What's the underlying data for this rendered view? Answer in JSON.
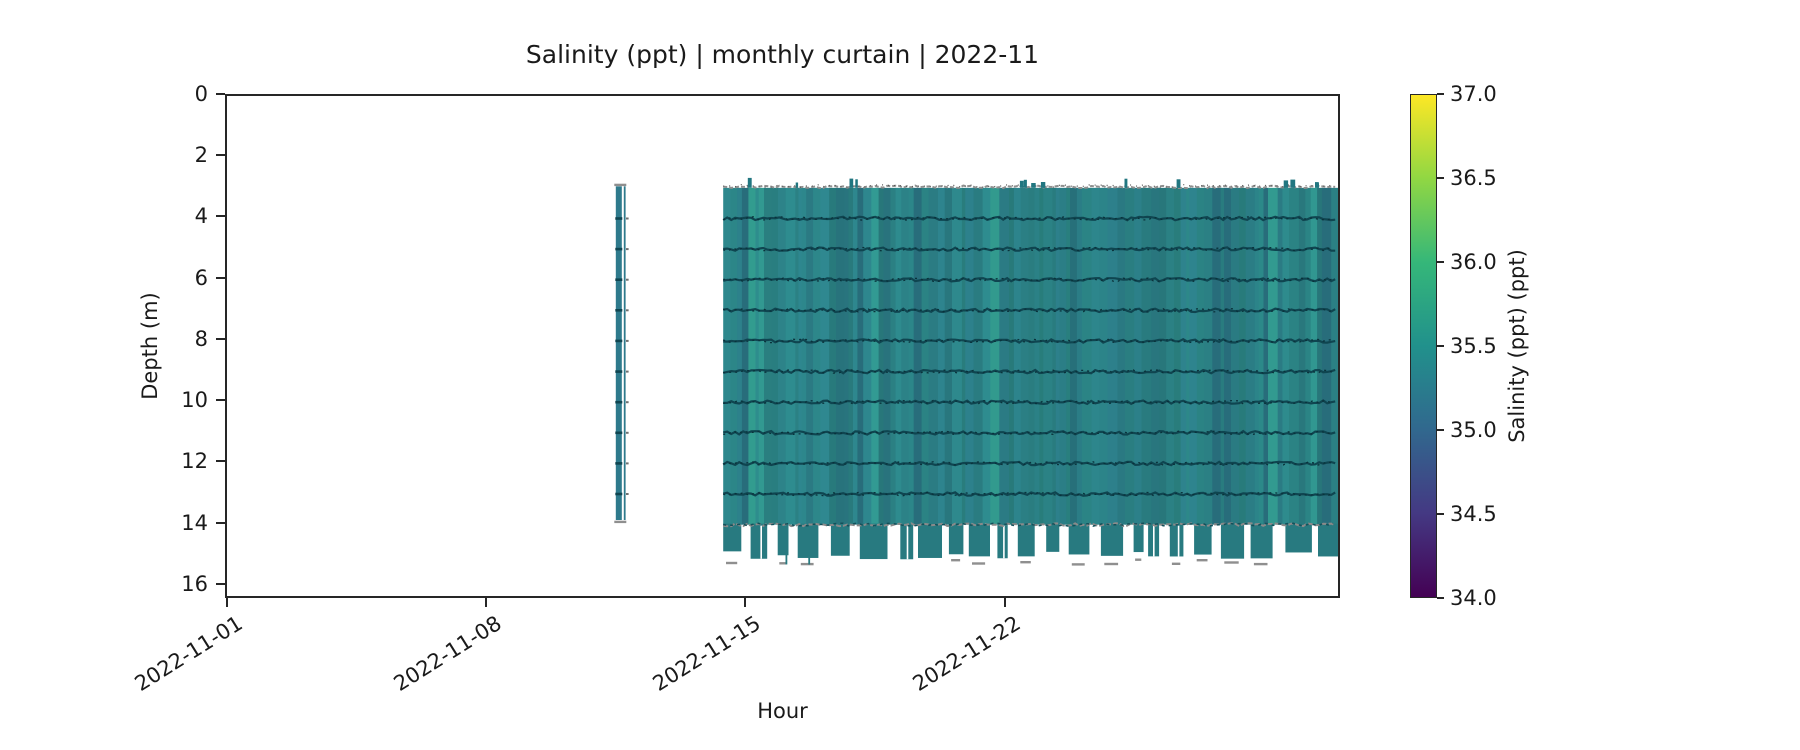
{
  "figure": {
    "background": "#ffffff"
  },
  "chart_data": {
    "type": "heatmap",
    "title": "Salinity (ppt) | monthly curtain | 2022-11",
    "xlabel": "Hour",
    "ylabel": "Depth (m)",
    "x_axis": {
      "start": "2022-11-01 00:00",
      "end": "2022-12-01 00:00",
      "span_days": 30,
      "tick_labels": [
        "2022-11-01",
        "2022-11-08",
        "2022-11-15",
        "2022-11-22"
      ],
      "tick_days_from_start": [
        0,
        7,
        14,
        21
      ],
      "tick_rotation_deg": 32
    },
    "y_axis": {
      "ticks": [
        0,
        2,
        4,
        6,
        8,
        10,
        12,
        14,
        16
      ],
      "tick_labels": [
        "0",
        "2",
        "4",
        "6",
        "8",
        "10",
        "12",
        "14",
        "16"
      ],
      "max_depth_m": 16.33,
      "inverted": true
    },
    "colorbar": {
      "label": "Salinity (ppt) (ppt)",
      "vmin": 34.0,
      "vmax": 37.0,
      "tick_labels": [
        "34.0",
        "34.5",
        "35.0",
        "35.5",
        "36.0",
        "36.5",
        "37.0"
      ],
      "tick_values": [
        34.0,
        34.5,
        35.0,
        35.5,
        36.0,
        36.5,
        37.0
      ],
      "colormap": "viridis",
      "colormap_stops": [
        "#440154",
        "#443983",
        "#31688e",
        "#21918c",
        "#35b779",
        "#90d743",
        "#fde725"
      ],
      "position": "right"
    },
    "grid": false,
    "legend": null,
    "series": [
      {
        "name": "brief-cast-strip",
        "start_day": 10.5,
        "end_day": 10.74,
        "depth_top_m": 2.95,
        "depth_bottom_m": 13.85,
        "approx_salinity_ppt": 35.3
      },
      {
        "name": "main-curtain",
        "start_day": 13.4,
        "end_day": 30.0,
        "depth_top_m": 3.0,
        "depth_bottom_solid_m": 14.0,
        "depth_bottom_intermittent_m": 15.0,
        "approx_salinity_ppt": 35.45
      }
    ],
    "instrument_trace_depths_m": [
      4,
      5,
      6,
      7,
      8,
      9,
      10,
      11,
      12,
      13
    ],
    "colors": {
      "curtain_base": "#2b858a",
      "strip_teal": "#2e7a8c",
      "trace_dark": "#0f4550",
      "trace_darker": "#0a323b",
      "speckle_gray": "#8f8f8f",
      "spine": "#262626"
    }
  }
}
